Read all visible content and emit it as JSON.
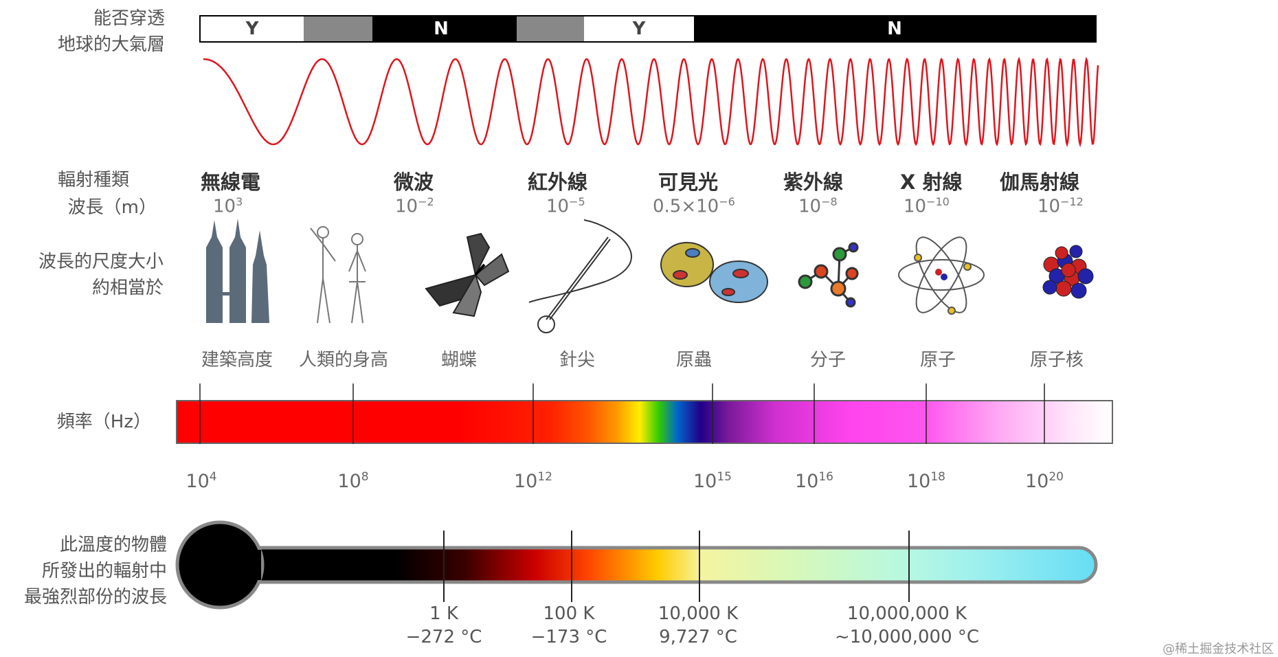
{
  "labels": {
    "penetrate_line1": "能否穿透",
    "penetrate_line2": "地球的大氣層",
    "type": "輻射種類",
    "wavelength": "波長（m）",
    "scale_line1": "波長的尺度大小",
    "scale_line2": "約相當於",
    "frequency": "頻率（Hz）",
    "temp_line1": "此溫度的物體",
    "temp_line2": "所發出的輻射中",
    "temp_line3": "最強烈部份的波長"
  },
  "atmosphere_bar": [
    {
      "label": "Y",
      "color": "#ffffff",
      "text_color": "#444444"
    },
    {
      "label": "",
      "color": "#888888",
      "text_color": "#ffffff"
    },
    {
      "label": "N",
      "color": "#000000",
      "text_color": "#ffffff"
    },
    {
      "label": "",
      "color": "#888888",
      "text_color": "#ffffff"
    },
    {
      "label": "Y",
      "color": "#ffffff",
      "text_color": "#444444"
    },
    {
      "label": "N",
      "color": "#000000",
      "text_color": "#ffffff"
    }
  ],
  "radiation_types": [
    {
      "name": "無線電",
      "base": "10",
      "exp": "3"
    },
    {
      "name": "微波",
      "base": "10",
      "exp": "−2"
    },
    {
      "name": "紅外線",
      "base": "10",
      "exp": "−5"
    },
    {
      "name": "可見光",
      "base": "0.5×10",
      "exp": "−6"
    },
    {
      "name": "紫外線",
      "base": "10",
      "exp": "−8"
    },
    {
      "name": "X 射線",
      "base": "10",
      "exp": "−10"
    },
    {
      "name": "伽馬射線",
      "base": "10",
      "exp": "−12"
    }
  ],
  "scale_objects": [
    {
      "caption": "建築高度",
      "icon": "buildings-icon"
    },
    {
      "caption": "人類的身高",
      "icon": "humans-icon"
    },
    {
      "caption": "蝴蝶",
      "icon": "butterfly-icon"
    },
    {
      "caption": "針尖",
      "icon": "needle-icon"
    },
    {
      "caption": "原蟲",
      "icon": "protozoa-icon"
    },
    {
      "caption": "分子",
      "icon": "molecule-icon"
    },
    {
      "caption": "原子",
      "icon": "atom-icon"
    },
    {
      "caption": "原子核",
      "icon": "nucleus-icon"
    }
  ],
  "frequency_ticks": [
    {
      "base": "10",
      "exp": "4"
    },
    {
      "base": "10",
      "exp": "8"
    },
    {
      "base": "10",
      "exp": "12"
    },
    {
      "base": "10",
      "exp": "15"
    },
    {
      "base": "10",
      "exp": "16"
    },
    {
      "base": "10",
      "exp": "18"
    },
    {
      "base": "10",
      "exp": "20"
    }
  ],
  "temperature_ticks": [
    {
      "kelvin": "1 K",
      "celsius": "−272 °C"
    },
    {
      "kelvin": "100 K",
      "celsius": "−173 °C"
    },
    {
      "kelvin": "10,000 K",
      "celsius": "9,727 °C"
    },
    {
      "kelvin": "10,000,000 K",
      "celsius": "~10,000,000 °C"
    }
  ],
  "watermark": "@稀土掘金技术社区",
  "colors": {
    "wave": "#e0141c",
    "bar_border": "#000000"
  }
}
